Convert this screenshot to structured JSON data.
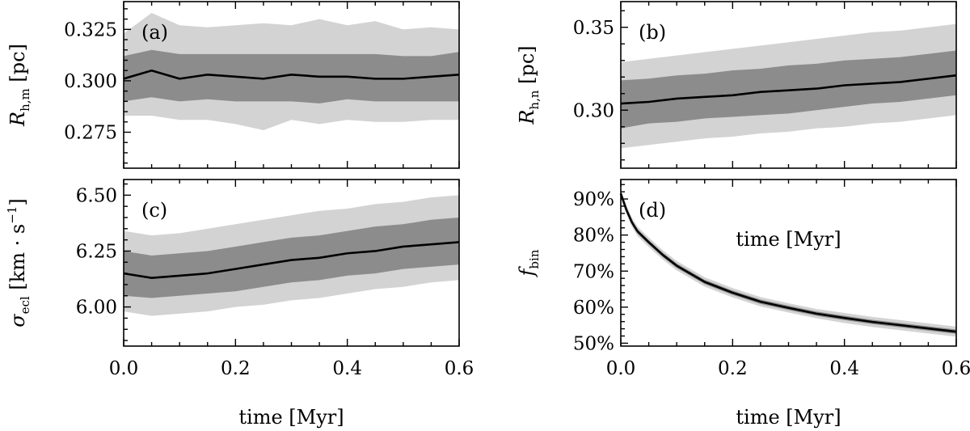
{
  "chart_data": [
    {
      "id": "a",
      "type": "area",
      "panel_label": "(a)",
      "ylabel_main": "R",
      "ylabel_sub": "h,m",
      "ylabel_unit": " [pc]",
      "xlabel": "",
      "xlim": [
        0,
        0.6
      ],
      "ylim": [
        0.2575,
        0.3385
      ],
      "yticks": [
        0.275,
        0.3,
        0.325
      ],
      "ytick_labels": [
        "0.275",
        "0.300",
        "0.325"
      ],
      "xticks": [
        0.0,
        0.2,
        0.4,
        0.6
      ],
      "xtick_labels": [
        "",
        "",
        "",
        ""
      ],
      "x": [
        0.0,
        0.05,
        0.1,
        0.15,
        0.2,
        0.25,
        0.3,
        0.35,
        0.4,
        0.45,
        0.5,
        0.55,
        0.6
      ],
      "median": [
        0.301,
        0.305,
        0.301,
        0.303,
        0.302,
        0.301,
        0.303,
        0.302,
        0.302,
        0.301,
        0.301,
        0.302,
        0.303
      ],
      "inner_lower": [
        0.29,
        0.292,
        0.29,
        0.291,
        0.29,
        0.29,
        0.29,
        0.289,
        0.291,
        0.29,
        0.29,
        0.29,
        0.29
      ],
      "inner_upper": [
        0.312,
        0.315,
        0.313,
        0.313,
        0.313,
        0.313,
        0.313,
        0.313,
        0.313,
        0.313,
        0.312,
        0.312,
        0.314
      ],
      "outer_lower": [
        0.283,
        0.283,
        0.281,
        0.281,
        0.279,
        0.276,
        0.281,
        0.279,
        0.281,
        0.28,
        0.28,
        0.281,
        0.281
      ],
      "outer_upper": [
        0.323,
        0.333,
        0.327,
        0.326,
        0.327,
        0.328,
        0.327,
        0.33,
        0.327,
        0.329,
        0.325,
        0.326,
        0.325
      ]
    },
    {
      "id": "b",
      "type": "area",
      "panel_label": "(b)",
      "ylabel_main": "R",
      "ylabel_sub": "h,n",
      "ylabel_unit": " [pc]",
      "xlabel": "time [Myr]",
      "xlim": [
        0,
        0.6
      ],
      "ylim": [
        0.265,
        0.3655
      ],
      "yticks": [
        0.3,
        0.35
      ],
      "ytick_labels": [
        "0.30",
        "0.35"
      ],
      "xticks": [
        0.0,
        0.2,
        0.4,
        0.6
      ],
      "xtick_labels": [
        "",
        "",
        "",
        ""
      ],
      "x": [
        0.0,
        0.05,
        0.1,
        0.15,
        0.2,
        0.25,
        0.3,
        0.35,
        0.4,
        0.45,
        0.5,
        0.55,
        0.6
      ],
      "median": [
        0.304,
        0.305,
        0.307,
        0.308,
        0.309,
        0.311,
        0.312,
        0.313,
        0.315,
        0.316,
        0.317,
        0.319,
        0.321
      ],
      "inner_lower": [
        0.289,
        0.292,
        0.293,
        0.295,
        0.296,
        0.297,
        0.298,
        0.3,
        0.302,
        0.304,
        0.305,
        0.307,
        0.309
      ],
      "inner_upper": [
        0.318,
        0.319,
        0.321,
        0.322,
        0.324,
        0.325,
        0.327,
        0.328,
        0.33,
        0.331,
        0.332,
        0.334,
        0.336
      ],
      "outer_lower": [
        0.277,
        0.279,
        0.281,
        0.283,
        0.284,
        0.286,
        0.287,
        0.289,
        0.29,
        0.292,
        0.293,
        0.295,
        0.297
      ],
      "outer_upper": [
        0.329,
        0.331,
        0.333,
        0.335,
        0.337,
        0.339,
        0.341,
        0.343,
        0.345,
        0.347,
        0.348,
        0.35,
        0.352
      ]
    },
    {
      "id": "c",
      "type": "area",
      "panel_label": "(c)",
      "ylabel_main": "σ",
      "ylabel_sub": "ecl",
      "ylabel_unit": " [km · s",
      "ylabel_sup": "−1",
      "ylabel_close": "]",
      "xlabel": "time [Myr]",
      "xlim": [
        0,
        0.6
      ],
      "ylim": [
        5.825,
        6.57
      ],
      "yticks": [
        6.0,
        6.25,
        6.5
      ],
      "ytick_labels": [
        "6.00",
        "6.25",
        "6.50"
      ],
      "xticks": [
        0.0,
        0.2,
        0.4,
        0.6
      ],
      "xtick_labels": [
        "0.0",
        "0.2",
        "0.4",
        "0.6"
      ],
      "x": [
        0.0,
        0.05,
        0.1,
        0.15,
        0.2,
        0.25,
        0.3,
        0.35,
        0.4,
        0.45,
        0.5,
        0.55,
        0.6
      ],
      "median": [
        6.15,
        6.13,
        6.14,
        6.15,
        6.17,
        6.19,
        6.21,
        6.22,
        6.24,
        6.25,
        6.27,
        6.28,
        6.29
      ],
      "inner_lower": [
        6.05,
        6.04,
        6.05,
        6.06,
        6.07,
        6.09,
        6.11,
        6.12,
        6.14,
        6.15,
        6.17,
        6.18,
        6.19
      ],
      "inner_upper": [
        6.25,
        6.23,
        6.24,
        6.25,
        6.27,
        6.29,
        6.31,
        6.32,
        6.34,
        6.36,
        6.37,
        6.39,
        6.4
      ],
      "outer_lower": [
        5.98,
        5.96,
        5.97,
        5.98,
        6.0,
        6.01,
        6.03,
        6.04,
        6.06,
        6.08,
        6.09,
        6.11,
        6.12
      ],
      "outer_upper": [
        6.34,
        6.32,
        6.33,
        6.35,
        6.37,
        6.39,
        6.41,
        6.43,
        6.44,
        6.46,
        6.47,
        6.49,
        6.5
      ]
    },
    {
      "id": "d",
      "type": "area",
      "panel_label": "(d)",
      "ylabel_main": "f",
      "ylabel_sub": "bin",
      "ylabel_unit": "",
      "xlabel": "time [Myr]",
      "xlim": [
        0,
        0.6
      ],
      "ylim": [
        49.2,
        95.4
      ],
      "yticks": [
        50,
        60,
        70,
        80,
        90
      ],
      "ytick_labels": [
        "50%",
        "60%",
        "70%",
        "80%",
        "90%"
      ],
      "xticks": [
        0.0,
        0.2,
        0.4,
        0.6
      ],
      "xtick_labels": [
        "0.0",
        "0.2",
        "0.4",
        "0.6"
      ],
      "x": [
        0.0,
        0.01,
        0.02,
        0.03,
        0.05,
        0.075,
        0.1,
        0.15,
        0.2,
        0.25,
        0.3,
        0.35,
        0.4,
        0.45,
        0.5,
        0.55,
        0.6
      ],
      "median": [
        91.5,
        87.0,
        83.5,
        81.0,
        78.0,
        74.5,
        71.5,
        67.0,
        64.0,
        61.5,
        59.8,
        58.2,
        57.0,
        55.9,
        55.0,
        54.1,
        53.2
      ],
      "inner_lower": [
        91.0,
        86.4,
        82.9,
        80.4,
        77.4,
        73.9,
        70.9,
        66.4,
        63.4,
        60.9,
        59.2,
        57.6,
        56.4,
        55.3,
        54.4,
        53.5,
        52.6
      ],
      "inner_upper": [
        92.0,
        87.6,
        84.1,
        81.6,
        78.6,
        75.1,
        72.1,
        67.6,
        64.6,
        62.1,
        60.4,
        58.8,
        57.6,
        56.5,
        55.6,
        54.7,
        53.8
      ],
      "outer_lower": [
        90.5,
        85.8,
        82.2,
        79.7,
        76.7,
        73.2,
        70.2,
        65.7,
        62.7,
        60.2,
        58.5,
        56.9,
        55.6,
        54.5,
        53.6,
        52.7,
        51.8
      ],
      "outer_upper": [
        92.5,
        88.2,
        84.8,
        82.3,
        79.3,
        75.8,
        72.8,
        68.3,
        65.3,
        62.8,
        61.1,
        59.5,
        58.4,
        57.3,
        56.4,
        55.5,
        54.6
      ]
    }
  ],
  "style": {
    "outer_band_color": "#d3d3d3",
    "inner_band_color": "#8c8c8c",
    "median_color": "#000000"
  }
}
